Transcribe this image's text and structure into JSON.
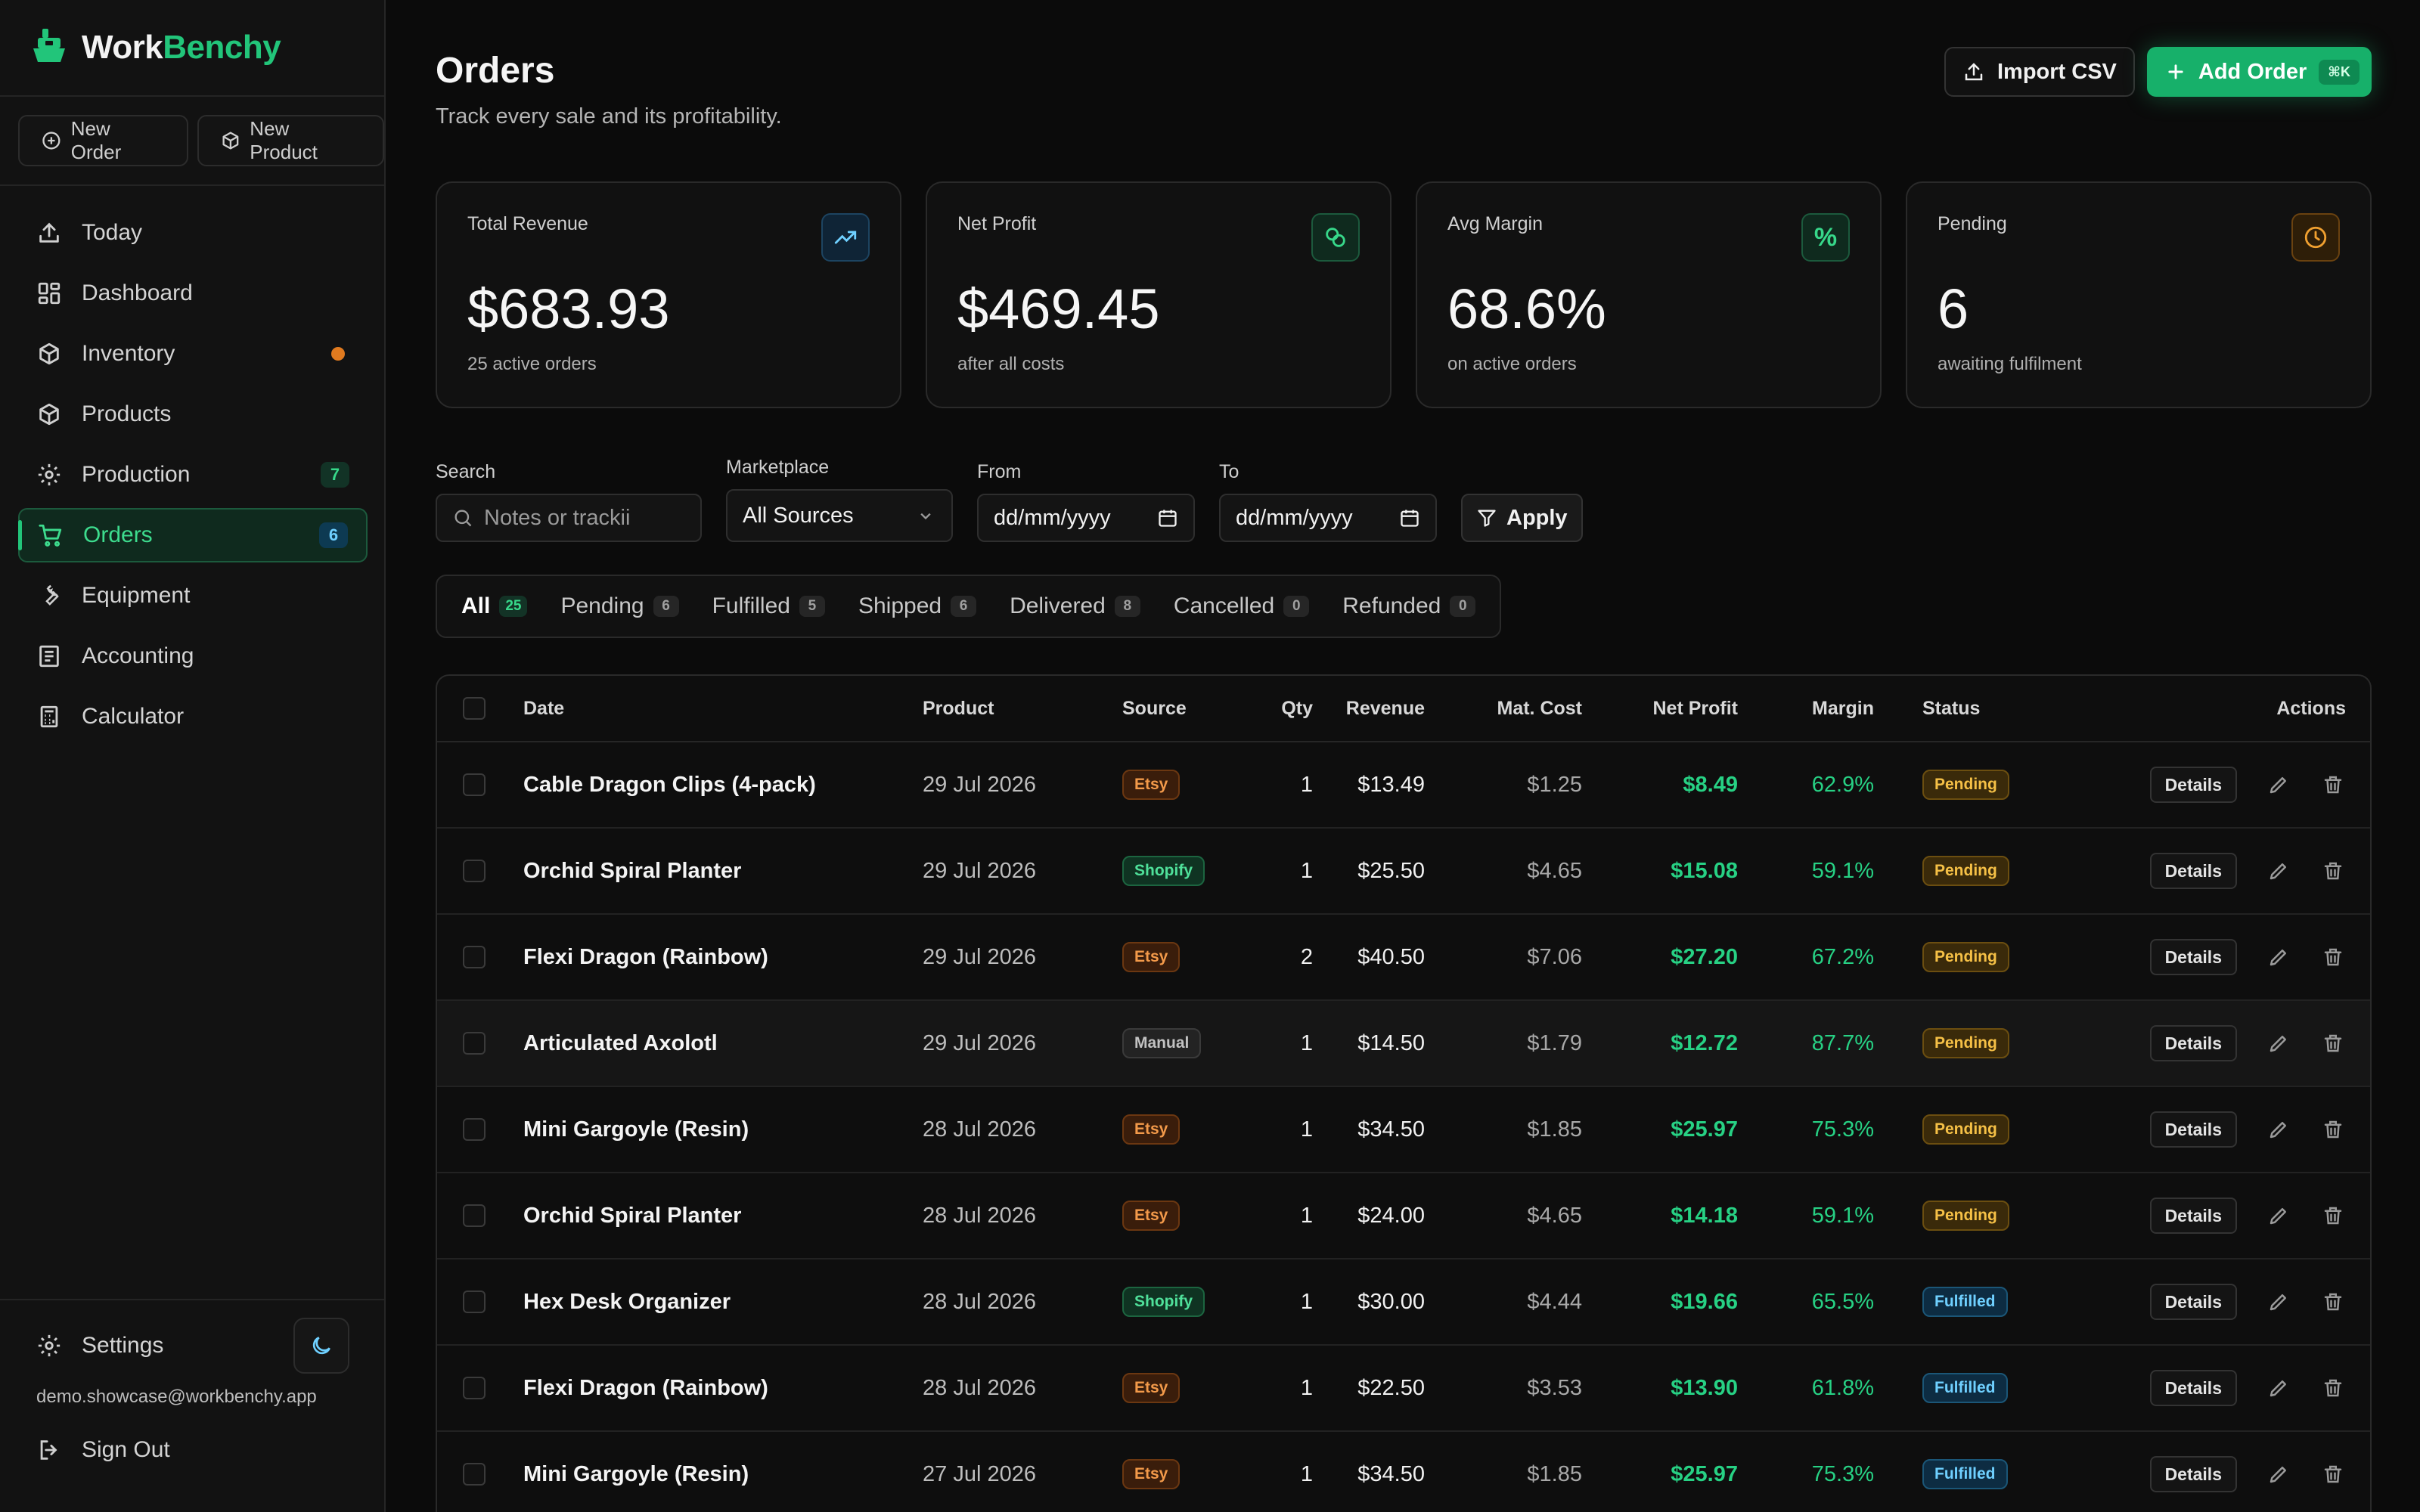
{
  "brand": {
    "word_a": "Work",
    "word_b": "Benchy"
  },
  "quick_actions": {
    "new_order": "New Order",
    "new_product": "New Product"
  },
  "nav": {
    "today": "Today",
    "dashboard": "Dashboard",
    "inventory": "Inventory",
    "products": "Products",
    "production": "Production",
    "production_badge": "7",
    "orders": "Orders",
    "orders_badge": "6",
    "equipment": "Equipment",
    "accounting": "Accounting",
    "calculator": "Calculator"
  },
  "sidebar_bottom": {
    "settings": "Settings",
    "email": "demo.showcase@workbenchy.app",
    "sign_out": "Sign Out"
  },
  "header": {
    "title": "Orders",
    "subtitle": "Track every sale and its profitability.",
    "import_label": "Import CSV",
    "add_label": "Add Order",
    "add_shortcut": "⌘K"
  },
  "stats": {
    "revenue": {
      "label": "Total Revenue",
      "value": "$683.93",
      "sub": "25 active orders"
    },
    "profit": {
      "label": "Net Profit",
      "value": "$469.45",
      "sub": "after all costs"
    },
    "margin": {
      "label": "Avg Margin",
      "value": "68.6%",
      "sub": "on active orders",
      "icon_text": "%"
    },
    "pending": {
      "label": "Pending",
      "value": "6",
      "sub": "awaiting fulfilment"
    }
  },
  "filters": {
    "search_label": "Search",
    "search_placeholder": "Notes or trackii",
    "marketplace_label": "Marketplace",
    "marketplace_value": "All Sources",
    "from_label": "From",
    "from_value": "dd/mm/yyyy",
    "to_label": "To",
    "to_value": "dd/mm/yyyy",
    "apply": "Apply"
  },
  "tabs": [
    {
      "label": "All",
      "count": "25"
    },
    {
      "label": "Pending",
      "count": "6"
    },
    {
      "label": "Fulfilled",
      "count": "5"
    },
    {
      "label": "Shipped",
      "count": "6"
    },
    {
      "label": "Delivered",
      "count": "8"
    },
    {
      "label": "Cancelled",
      "count": "0"
    },
    {
      "label": "Refunded",
      "count": "0"
    }
  ],
  "table": {
    "headers": {
      "date": "Date",
      "product": "Product",
      "source": "Source",
      "qty": "Qty",
      "revenue": "Revenue",
      "mat_cost": "Mat. Cost",
      "net_profit": "Net Profit",
      "margin": "Margin",
      "status": "Status",
      "actions": "Actions"
    },
    "details_label": "Details",
    "rows": [
      {
        "name": "Cable Dragon Clips (4-pack)",
        "date": "29 Jul 2026",
        "source": "Etsy",
        "qty": "1",
        "revenue": "$13.49",
        "mat": "$1.25",
        "net": "$8.49",
        "margin": "62.9%",
        "status": "Pending"
      },
      {
        "name": "Orchid Spiral Planter",
        "date": "29 Jul 2026",
        "source": "Shopify",
        "qty": "1",
        "revenue": "$25.50",
        "mat": "$4.65",
        "net": "$15.08",
        "margin": "59.1%",
        "status": "Pending"
      },
      {
        "name": "Flexi Dragon (Rainbow)",
        "date": "29 Jul 2026",
        "source": "Etsy",
        "qty": "2",
        "revenue": "$40.50",
        "mat": "$7.06",
        "net": "$27.20",
        "margin": "67.2%",
        "status": "Pending"
      },
      {
        "name": "Articulated Axolotl",
        "date": "29 Jul 2026",
        "source": "Manual",
        "qty": "1",
        "revenue": "$14.50",
        "mat": "$1.79",
        "net": "$12.72",
        "margin": "87.7%",
        "status": "Pending"
      },
      {
        "name": "Mini Gargoyle (Resin)",
        "date": "28 Jul 2026",
        "source": "Etsy",
        "qty": "1",
        "revenue": "$34.50",
        "mat": "$1.85",
        "net": "$25.97",
        "margin": "75.3%",
        "status": "Pending"
      },
      {
        "name": "Orchid Spiral Planter",
        "date": "28 Jul 2026",
        "source": "Etsy",
        "qty": "1",
        "revenue": "$24.00",
        "mat": "$4.65",
        "net": "$14.18",
        "margin": "59.1%",
        "status": "Pending"
      },
      {
        "name": "Hex Desk Organizer",
        "date": "28 Jul 2026",
        "source": "Shopify",
        "qty": "1",
        "revenue": "$30.00",
        "mat": "$4.44",
        "net": "$19.66",
        "margin": "65.5%",
        "status": "Fulfilled"
      },
      {
        "name": "Flexi Dragon (Rainbow)",
        "date": "28 Jul 2026",
        "source": "Etsy",
        "qty": "1",
        "revenue": "$22.50",
        "mat": "$3.53",
        "net": "$13.90",
        "margin": "61.8%",
        "status": "Fulfilled"
      },
      {
        "name": "Mini Gargoyle (Resin)",
        "date": "27 Jul 2026",
        "source": "Etsy",
        "qty": "1",
        "revenue": "$34.50",
        "mat": "$1.85",
        "net": "$25.97",
        "margin": "75.3%",
        "status": "Fulfilled"
      }
    ]
  }
}
